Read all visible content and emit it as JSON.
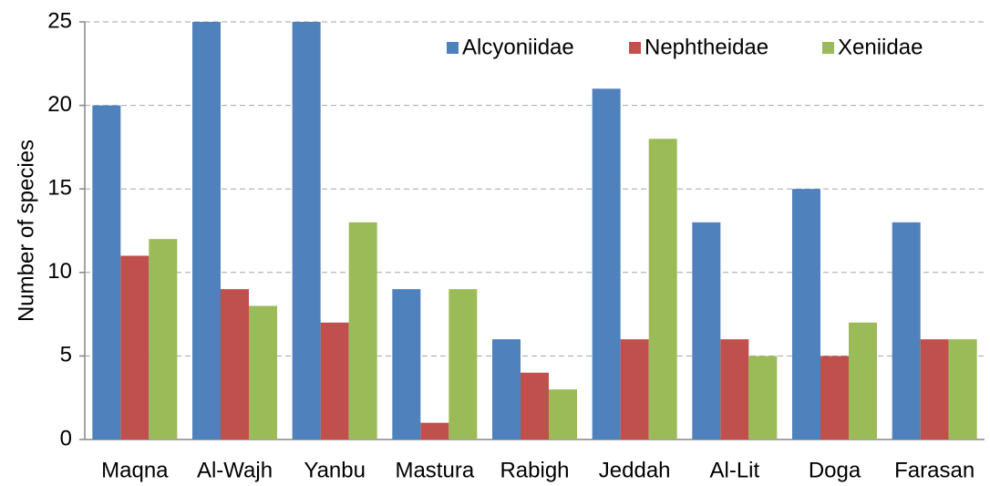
{
  "chart_data": {
    "type": "bar",
    "y_label": "Number of species",
    "categories": [
      "Maqna",
      "Al-Wajh",
      "Yanbu",
      "Mastura",
      "Rabigh",
      "Jeddah",
      "Al-Lit",
      "Doga",
      "Farasan"
    ],
    "series": [
      {
        "name": "Alcyoniidae",
        "color": "#4f81bd",
        "values": [
          20,
          25,
          25,
          9,
          6,
          21,
          13,
          15,
          13
        ]
      },
      {
        "name": "Nephtheidae",
        "color": "#c0504d",
        "values": [
          11,
          9,
          7,
          1,
          4,
          6,
          6,
          5,
          6
        ]
      },
      {
        "name": "Xeniidae",
        "color": "#9bbb59",
        "values": [
          12,
          8,
          13,
          9,
          3,
          18,
          5,
          7,
          6
        ]
      }
    ],
    "ylim": [
      0,
      25
    ],
    "yticks": [
      0,
      5,
      10,
      15,
      20,
      25
    ],
    "grid": true,
    "legend": "top-right"
  }
}
